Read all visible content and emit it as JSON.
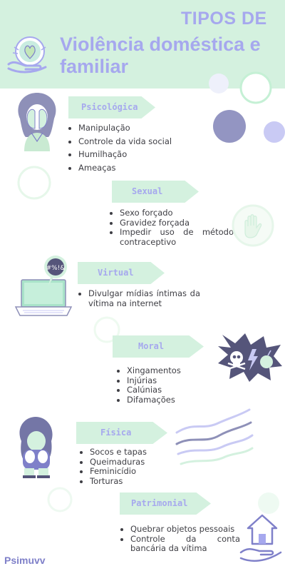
{
  "header": {
    "kicker": "TIPOS DE",
    "title": "Violência doméstica e familiar"
  },
  "colors": {
    "mint": "#d4f1df",
    "lavender": "#a6a8ee",
    "slate": "#8e90b8",
    "text": "#3e3e44"
  },
  "sections": [
    {
      "tag": "Psicológica",
      "items": [
        "Manipulação",
        "Controle da vida social",
        "Humilhação",
        "Ameaças"
      ]
    },
    {
      "tag": "Sexual",
      "items": [
        "Sexo forçado",
        "Gravidez forçada",
        "Impedir uso de método contraceptivo"
      ]
    },
    {
      "tag": "Virtual",
      "items": [
        "Divulgar mídias íntimas da vítima na internet"
      ]
    },
    {
      "tag": "Moral",
      "items": [
        "Xingamentos",
        "Injúrias",
        "Calúnias",
        "Difamações"
      ]
    },
    {
      "tag": "Física",
      "items": [
        "Socos e tapas",
        "Queimaduras",
        "Feminicídio",
        "Torturas"
      ]
    },
    {
      "tag": "Patrimonial",
      "items": [
        "Quebrar objetos pessoais",
        "Controle da conta bancária da vítima"
      ]
    }
  ],
  "icons": {
    "logo": "hands-heart-globe-icon",
    "psicologica": "crying-woman-icon",
    "sexual": "stop-hand-icon",
    "virtual": "laptop-swearing-icon",
    "moral": "skull-lightning-bomb-icon",
    "fisica": "frightened-child-icon",
    "patrimonial": "hand-house-icon"
  },
  "speech_bubble_text": "#%!&",
  "footer": {
    "brand": "Psimuvv"
  }
}
